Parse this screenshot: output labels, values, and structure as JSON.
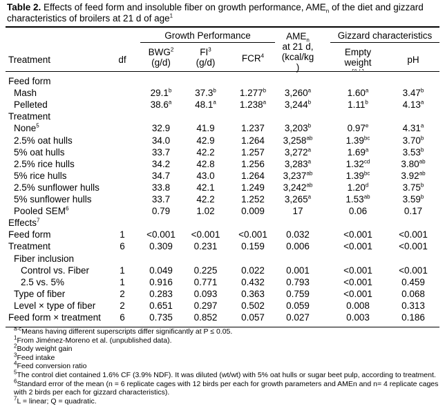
{
  "caption": {
    "label": "Table 2.",
    "text": " Effects of feed form and insoluble fiber on growth performance, AME",
    "ame_sub": "n",
    "text2": " of the diet and gizzard characteristics of broilers at 21 d of age",
    "sup": "1"
  },
  "headers": {
    "growth_performance": "Growth Performance",
    "gizzard": "Gizzard characteristics",
    "treatment": "Treatment",
    "df": "df",
    "bwg": "BWG",
    "bwg_sup": "2",
    "bwg_unit": "(g/d)",
    "fi": "FI",
    "fi_sup": "3",
    "fi_unit": "(g/d)",
    "fcr": "FCR",
    "fcr_sup": "4",
    "ame": "AME",
    "ame_sub": "n",
    "ame_l2": "at 21 d,",
    "ame_l3": "(kcal/kg",
    "ame_l4": ")",
    "ew_l1": "Empty",
    "ew_l2": "weight",
    "ew_l3": "(%)",
    "ph": "pH"
  },
  "rows": [
    {
      "label": "Feed form",
      "indent": 0,
      "df": "",
      "bwg": "",
      "fi": "",
      "fcr": "",
      "ame": "",
      "ew": "",
      "ph": ""
    },
    {
      "label": "Mash",
      "indent": 1,
      "df": "",
      "bwg": "29.1",
      "bwg_s": "b",
      "fi": "37.3",
      "fi_s": "b",
      "fcr": "1.277",
      "fcr_s": "b",
      "ame": "3,260",
      "ame_s": "a",
      "ew": "1.60",
      "ew_s": "a",
      "ph": "3.47",
      "ph_s": "b"
    },
    {
      "label": "Pelleted",
      "indent": 1,
      "df": "",
      "bwg": "38.6",
      "bwg_s": "a",
      "fi": "48.1",
      "fi_s": "a",
      "fcr": "1.238",
      "fcr_s": "a",
      "ame": "3,244",
      "ame_s": "b",
      "ew": "1.11",
      "ew_s": "b",
      "ph": "4.13",
      "ph_s": "a"
    },
    {
      "label": "Treatment",
      "indent": 0,
      "df": "",
      "bwg": "",
      "fi": "",
      "fcr": "",
      "ame": "",
      "ew": "",
      "ph": ""
    },
    {
      "label": "None",
      "label_s": "5",
      "indent": 1,
      "df": "",
      "bwg": "32.9",
      "fi": "41.9",
      "fcr": "1.237",
      "ame": "3,203",
      "ame_s": "b",
      "ew": "0.97",
      "ew_s": "e",
      "ph": "4.31",
      "ph_s": "a"
    },
    {
      "label": "2.5% oat hulls",
      "indent": 1,
      "df": "",
      "bwg": "34.0",
      "fi": "42.9",
      "fcr": "1.264",
      "ame": "3,258",
      "ame_s": "ab",
      "ew": "1.39",
      "ew_s": "bc",
      "ph": "3.70",
      "ph_s": "b"
    },
    {
      "label": "5% oat hulls",
      "indent": 1,
      "df": "",
      "bwg": "33.7",
      "fi": "42.2",
      "fcr": "1.257",
      "ame": "3,272",
      "ame_s": "a",
      "ew": "1.69",
      "ew_s": "a",
      "ph": "3.53",
      "ph_s": "b"
    },
    {
      "label": "2.5% rice hulls",
      "indent": 1,
      "df": "",
      "bwg": "34.2",
      "fi": "42.8",
      "fcr": "1.256",
      "ame": "3,283",
      "ame_s": "a",
      "ew": "1.32",
      "ew_s": "cd",
      "ph": "3.80",
      "ph_s": "ab"
    },
    {
      "label": "5% rice hulls",
      "indent": 1,
      "df": "",
      "bwg": "34.7",
      "fi": "43.0",
      "fcr": "1.264",
      "ame": "3,237",
      "ame_s": "ab",
      "ew": "1.39",
      "ew_s": "bc",
      "ph": "3.92",
      "ph_s": "ab"
    },
    {
      "label": "2.5% sunflower hulls",
      "indent": 1,
      "df": "",
      "bwg": "33.8",
      "fi": "42.1",
      "fcr": "1.249",
      "ame": "3,242",
      "ame_s": "ab",
      "ew": "1.20",
      "ew_s": "d",
      "ph": "3.75",
      "ph_s": "b"
    },
    {
      "label": "5% sunflower hulls",
      "indent": 1,
      "df": "",
      "bwg": "33.7",
      "fi": "42.2",
      "fcr": "1.252",
      "ame": "3,265",
      "ame_s": "a",
      "ew": "1.53",
      "ew_s": "ab",
      "ph": "3.59",
      "ph_s": "b"
    },
    {
      "label": "Pooled SEM",
      "label_s": "6",
      "indent": 1,
      "df": "",
      "bwg": "0.79",
      "fi": "1.02",
      "fcr": "0.009",
      "ame": "17",
      "ew": "0.06",
      "ph": "0.17"
    },
    {
      "label": "Effects",
      "label_s": "7",
      "indent": 0,
      "df": "",
      "bwg": "",
      "fi": "",
      "fcr": "",
      "ame": "",
      "ew": "",
      "ph": ""
    },
    {
      "label": "Feed form",
      "indent": 0,
      "df": "1",
      "bwg": "<0.001",
      "fi": "<0.001",
      "fcr": "<0.001",
      "ame": "0.032",
      "ew": "<0.001",
      "ph": "<0.001"
    },
    {
      "label": "Treatment",
      "indent": 0,
      "df": "6",
      "bwg": "0.309",
      "fi": "0.231",
      "fcr": "0.159",
      "ame": "0.006",
      "ew": "<0.001",
      "ph": "<0.001"
    },
    {
      "label": "Fiber inclusion",
      "indent": 1,
      "df": "",
      "bwg": "",
      "fi": "",
      "fcr": "",
      "ame": "",
      "ew": "",
      "ph": ""
    },
    {
      "label": "Control vs. Fiber",
      "indent": 2,
      "df": "1",
      "bwg": "0.049",
      "fi": "0.225",
      "fcr": "0.022",
      "ame": "0.001",
      "ew": "<0.001",
      "ph": "<0.001"
    },
    {
      "label": "2.5 vs. 5%",
      "indent": 2,
      "df": "1",
      "bwg": "0.916",
      "fi": "0.771",
      "fcr": "0.432",
      "ame": "0.793",
      "ew": "<0.001",
      "ph": "0.459"
    },
    {
      "label": "Type of fiber",
      "indent": 1,
      "df": "2",
      "bwg": "0.283",
      "fi": "0.093",
      "fcr": "0.363",
      "ame": "0.759",
      "ew": "<0.001",
      "ph": "0.068"
    },
    {
      "label": "Level × type of fiber",
      "indent": 1,
      "df": "2",
      "bwg": "0.651",
      "fi": "0.297",
      "fcr": "0.502",
      "ame": "0.059",
      "ew": "0.008",
      "ph": "0.313"
    },
    {
      "label": "Feed form × treatment",
      "indent": 0,
      "df": "6",
      "bwg": "0.735",
      "fi": "0.852",
      "fcr": "0.057",
      "ame": "0.027",
      "ew": "0.003",
      "ph": "0.186"
    }
  ],
  "notes": [
    {
      "mark": "a-c",
      "text": "Means having different superscripts differ significantly at P ≤ 0.05."
    },
    {
      "mark": "1",
      "text": "From Jiménez-Moreno et al. (unpublished data)."
    },
    {
      "mark": "2",
      "text": "Body weight gain"
    },
    {
      "mark": "3",
      "text": "Feed intake"
    },
    {
      "mark": "4",
      "text": "Feed conversion ratio"
    },
    {
      "mark": "5",
      "text": "The control diet contained 1.6% CF (3.9% NDF). It was diluted (wt/wt) with 5% oat hulls or sugar beet pulp, according to treatment."
    },
    {
      "mark": "6",
      "text": "Standard error of the mean (n = 6 replicate cages with 12 birds per each for growth parameters and AMEn and n= 4 replicate cages with 2 birds per each for gizzard characteristics)."
    },
    {
      "mark": "7",
      "text": "L = linear; Q = quadratic."
    }
  ]
}
